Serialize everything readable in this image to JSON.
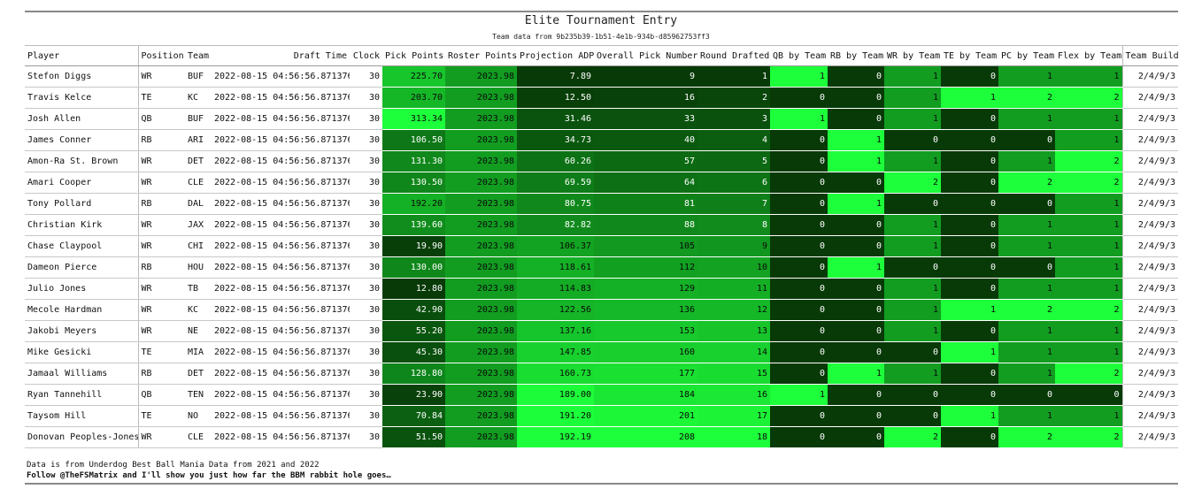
{
  "title": "Elite Tournament Entry",
  "subtitle": "Team data from 9b235b39-1b51-4e1b-934b-d85962753ff3",
  "footer": {
    "line1": "Data is from Underdog Best Ball Mania Data from 2021 and 2022",
    "line2": "Follow @TheFSMatrix and I'll show you just how far the BBM rabbit hole goes…"
  },
  "colors": {
    "min": "#073a07",
    "max": "#1dff3a"
  },
  "columns": [
    "Player",
    "Position",
    "Team",
    "Draft Time",
    "Clock",
    "Pick Points",
    "Roster Points",
    "Projection ADP",
    "Overall Pick Number",
    "Round Drafted",
    "QB by Team",
    "RB by Team",
    "WR by Team",
    "TE by Team",
    "PC by Team",
    "Flex by Team",
    "Team Build"
  ],
  "rows": [
    [
      "Stefon Diggs",
      "WR",
      "BUF",
      "2022-08-15 04:56:56.871376",
      "30",
      "225.70",
      "2023.98",
      "7.89",
      "9",
      "1",
      "1",
      "0",
      "1",
      "0",
      "1",
      "1",
      "2/4/9/3"
    ],
    [
      "Travis Kelce",
      "TE",
      "KC",
      "2022-08-15 04:56:56.871376",
      "30",
      "203.70",
      "2023.98",
      "12.50",
      "16",
      "2",
      "0",
      "0",
      "1",
      "1",
      "2",
      "2",
      "2/4/9/3"
    ],
    [
      "Josh Allen",
      "QB",
      "BUF",
      "2022-08-15 04:56:56.871376",
      "30",
      "313.34",
      "2023.98",
      "31.46",
      "33",
      "3",
      "1",
      "0",
      "1",
      "0",
      "1",
      "1",
      "2/4/9/3"
    ],
    [
      "James Conner",
      "RB",
      "ARI",
      "2022-08-15 04:56:56.871376",
      "30",
      "106.50",
      "2023.98",
      "34.73",
      "40",
      "4",
      "0",
      "1",
      "0",
      "0",
      "0",
      "1",
      "2/4/9/3"
    ],
    [
      "Amon-Ra St. Brown",
      "WR",
      "DET",
      "2022-08-15 04:56:56.871376",
      "30",
      "131.30",
      "2023.98",
      "60.26",
      "57",
      "5",
      "0",
      "1",
      "1",
      "0",
      "1",
      "2",
      "2/4/9/3"
    ],
    [
      "Amari Cooper",
      "WR",
      "CLE",
      "2022-08-15 04:56:56.871376",
      "30",
      "130.50",
      "2023.98",
      "69.59",
      "64",
      "6",
      "0",
      "0",
      "2",
      "0",
      "2",
      "2",
      "2/4/9/3"
    ],
    [
      "Tony Pollard",
      "RB",
      "DAL",
      "2022-08-15 04:56:56.871376",
      "30",
      "192.20",
      "2023.98",
      "80.75",
      "81",
      "7",
      "0",
      "1",
      "0",
      "0",
      "0",
      "1",
      "2/4/9/3"
    ],
    [
      "Christian Kirk",
      "WR",
      "JAX",
      "2022-08-15 04:56:56.871376",
      "30",
      "139.60",
      "2023.98",
      "82.82",
      "88",
      "8",
      "0",
      "0",
      "1",
      "0",
      "1",
      "1",
      "2/4/9/3"
    ],
    [
      "Chase Claypool",
      "WR",
      "CHI",
      "2022-08-15 04:56:56.871376",
      "30",
      "19.90",
      "2023.98",
      "106.37",
      "105",
      "9",
      "0",
      "0",
      "1",
      "0",
      "1",
      "1",
      "2/4/9/3"
    ],
    [
      "Dameon Pierce",
      "RB",
      "HOU",
      "2022-08-15 04:56:56.871376",
      "30",
      "130.00",
      "2023.98",
      "118.61",
      "112",
      "10",
      "0",
      "1",
      "0",
      "0",
      "0",
      "1",
      "2/4/9/3"
    ],
    [
      "Julio Jones",
      "WR",
      "TB",
      "2022-08-15 04:56:56.871376",
      "30",
      "12.80",
      "2023.98",
      "114.83",
      "129",
      "11",
      "0",
      "0",
      "1",
      "0",
      "1",
      "1",
      "2/4/9/3"
    ],
    [
      "Mecole Hardman",
      "WR",
      "KC",
      "2022-08-15 04:56:56.871376",
      "30",
      "42.90",
      "2023.98",
      "122.56",
      "136",
      "12",
      "0",
      "0",
      "1",
      "1",
      "2",
      "2",
      "2/4/9/3"
    ],
    [
      "Jakobi Meyers",
      "WR",
      "NE",
      "2022-08-15 04:56:56.871376",
      "30",
      "55.20",
      "2023.98",
      "137.16",
      "153",
      "13",
      "0",
      "0",
      "1",
      "0",
      "1",
      "1",
      "2/4/9/3"
    ],
    [
      "Mike Gesicki",
      "TE",
      "MIA",
      "2022-08-15 04:56:56.871376",
      "30",
      "45.30",
      "2023.98",
      "147.85",
      "160",
      "14",
      "0",
      "0",
      "0",
      "1",
      "1",
      "1",
      "2/4/9/3"
    ],
    [
      "Jamaal Williams",
      "RB",
      "DET",
      "2022-08-15 04:56:56.871376",
      "30",
      "128.80",
      "2023.98",
      "160.73",
      "177",
      "15",
      "0",
      "1",
      "1",
      "0",
      "1",
      "2",
      "2/4/9/3"
    ],
    [
      "Ryan Tannehill",
      "QB",
      "TEN",
      "2022-08-15 04:56:56.871376",
      "30",
      "23.90",
      "2023.98",
      "189.00",
      "184",
      "16",
      "1",
      "0",
      "0",
      "0",
      "0",
      "0",
      "2/4/9/3"
    ],
    [
      "Taysom Hill",
      "TE",
      "NO",
      "2022-08-15 04:56:56.871376",
      "30",
      "70.84",
      "2023.98",
      "191.20",
      "201",
      "17",
      "0",
      "0",
      "0",
      "1",
      "1",
      "1",
      "2/4/9/3"
    ],
    [
      "Donovan Peoples-Jones",
      "WR",
      "CLE",
      "2022-08-15 04:56:56.871376",
      "30",
      "51.50",
      "2023.98",
      "192.19",
      "208",
      "18",
      "0",
      "0",
      "2",
      "0",
      "2",
      "2",
      "2/4/9/3"
    ]
  ]
}
